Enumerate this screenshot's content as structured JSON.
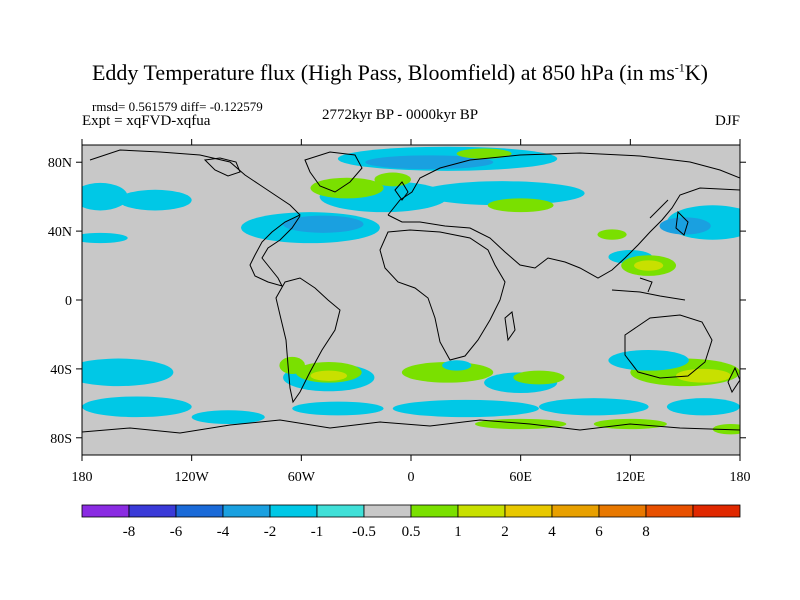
{
  "header": {
    "title_main": "Eddy Temperature flux (High Pass, Bloomfield) at 850 hPa (in ms",
    "title_sup": "-1",
    "title_end": "K)",
    "stats": "rmsd= 0.561579 diff= -0.122579",
    "expt": "Expt = xqFVD-xqfua",
    "period": "2772kyr BP - 0000kyr BP",
    "season": "DJF"
  },
  "map": {
    "background_color": "#c8c8c8",
    "lon_ticks": [
      {
        "lon": -180,
        "label": "180"
      },
      {
        "lon": -120,
        "label": "120W"
      },
      {
        "lon": -60,
        "label": "60W"
      },
      {
        "lon": 0,
        "label": "0"
      },
      {
        "lon": 60,
        "label": "60E"
      },
      {
        "lon": 120,
        "label": "120E"
      },
      {
        "lon": 180,
        "label": "180"
      }
    ],
    "lat_ticks": [
      {
        "lat": 80,
        "label": "80N"
      },
      {
        "lat": 40,
        "label": "40N"
      },
      {
        "lat": 0,
        "label": "0"
      },
      {
        "lat": -40,
        "label": "40S"
      },
      {
        "lat": -80,
        "label": "80S"
      }
    ],
    "regions": [
      {
        "level": -1,
        "lon": 20,
        "lat": 82,
        "rx": 60,
        "ry": 7
      },
      {
        "level": -2,
        "lon": 10,
        "lat": 80,
        "rx": 35,
        "ry": 4
      },
      {
        "level": -1,
        "lon": -15,
        "lat": 60,
        "rx": 35,
        "ry": 9
      },
      {
        "level": -1,
        "lon": -55,
        "lat": 42,
        "rx": 38,
        "ry": 9
      },
      {
        "level": -2,
        "lon": -48,
        "lat": 44,
        "rx": 22,
        "ry": 5
      },
      {
        "level": -1,
        "lon": 50,
        "lat": 62,
        "rx": 45,
        "ry": 7
      },
      {
        "level": -1,
        "lon": -170,
        "lat": 60,
        "rx": 15,
        "ry": 8
      },
      {
        "level": -1,
        "lon": -140,
        "lat": 58,
        "rx": 20,
        "ry": 6
      },
      {
        "level": -1,
        "lon": -170,
        "lat": 36,
        "rx": 15,
        "ry": 3
      },
      {
        "level": -1,
        "lon": 165,
        "lat": 45,
        "rx": 25,
        "ry": 10
      },
      {
        "level": -2,
        "lon": 150,
        "lat": 43,
        "rx": 14,
        "ry": 5
      },
      {
        "level": -1,
        "lon": 120,
        "lat": 25,
        "rx": 12,
        "ry": 4
      },
      {
        "level": 1,
        "lon": -35,
        "lat": 65,
        "rx": 20,
        "ry": 6
      },
      {
        "level": 1,
        "lon": -10,
        "lat": 70,
        "rx": 10,
        "ry": 4
      },
      {
        "level": 1,
        "lon": 40,
        "lat": 85,
        "rx": 15,
        "ry": 3
      },
      {
        "level": 1,
        "lon": 60,
        "lat": 55,
        "rx": 18,
        "ry": 4
      },
      {
        "level": 1,
        "lon": 130,
        "lat": 20,
        "rx": 15,
        "ry": 6
      },
      {
        "level": 2,
        "lon": 130,
        "lat": 20,
        "rx": 8,
        "ry": 3
      },
      {
        "level": 1,
        "lon": 110,
        "lat": 38,
        "rx": 8,
        "ry": 3
      },
      {
        "level": -1,
        "lon": -160,
        "lat": -42,
        "rx": 30,
        "ry": 8
      },
      {
        "level": -1,
        "lon": -45,
        "lat": -45,
        "rx": 25,
        "ry": 8
      },
      {
        "level": 1,
        "lon": -45,
        "lat": -42,
        "rx": 18,
        "ry": 6
      },
      {
        "level": 2,
        "lon": -45,
        "lat": -44,
        "rx": 10,
        "ry": 3
      },
      {
        "level": 1,
        "lon": -65,
        "lat": -38,
        "rx": 7,
        "ry": 5
      },
      {
        "level": 1,
        "lon": 20,
        "lat": -42,
        "rx": 25,
        "ry": 6
      },
      {
        "level": -1,
        "lon": 25,
        "lat": -38,
        "rx": 8,
        "ry": 3
      },
      {
        "level": -1,
        "lon": 60,
        "lat": -48,
        "rx": 20,
        "ry": 6
      },
      {
        "level": 1,
        "lon": 70,
        "lat": -45,
        "rx": 14,
        "ry": 4
      },
      {
        "level": 1,
        "lon": 150,
        "lat": -42,
        "rx": 30,
        "ry": 8
      },
      {
        "level": 2,
        "lon": 160,
        "lat": -44,
        "rx": 15,
        "ry": 4
      },
      {
        "level": -1,
        "lon": 130,
        "lat": -35,
        "rx": 22,
        "ry": 6
      },
      {
        "level": -1,
        "lon": -150,
        "lat": -62,
        "rx": 30,
        "ry": 6
      },
      {
        "level": -1,
        "lon": -100,
        "lat": -68,
        "rx": 20,
        "ry": 4
      },
      {
        "level": -1,
        "lon": -40,
        "lat": -63,
        "rx": 25,
        "ry": 4
      },
      {
        "level": -1,
        "lon": 30,
        "lat": -63,
        "rx": 40,
        "ry": 5
      },
      {
        "level": -1,
        "lon": 100,
        "lat": -62,
        "rx": 30,
        "ry": 5
      },
      {
        "level": -1,
        "lon": 160,
        "lat": -62,
        "rx": 20,
        "ry": 5
      },
      {
        "level": 1,
        "lon": 60,
        "lat": -72,
        "rx": 25,
        "ry": 3
      },
      {
        "level": 1,
        "lon": 120,
        "lat": -72,
        "rx": 20,
        "ry": 3
      },
      {
        "level": 1,
        "lon": 175,
        "lat": -75,
        "rx": 10,
        "ry": 3
      }
    ]
  },
  "colorbar": {
    "colors": [
      "#8a2be2",
      "#3a3ad8",
      "#1a6ad8",
      "#1aa0e0",
      "#00c8e6",
      "#40e0d8",
      "#c8c8c8",
      "#7ae000",
      "#c8e000",
      "#e8c800",
      "#e8a000",
      "#e87800",
      "#e85000",
      "#e02800"
    ],
    "labels": [
      "-8",
      "-6",
      "-4",
      "-2",
      "-1",
      "-0.5",
      "0.5",
      "1",
      "2",
      "4",
      "6",
      "8"
    ]
  }
}
